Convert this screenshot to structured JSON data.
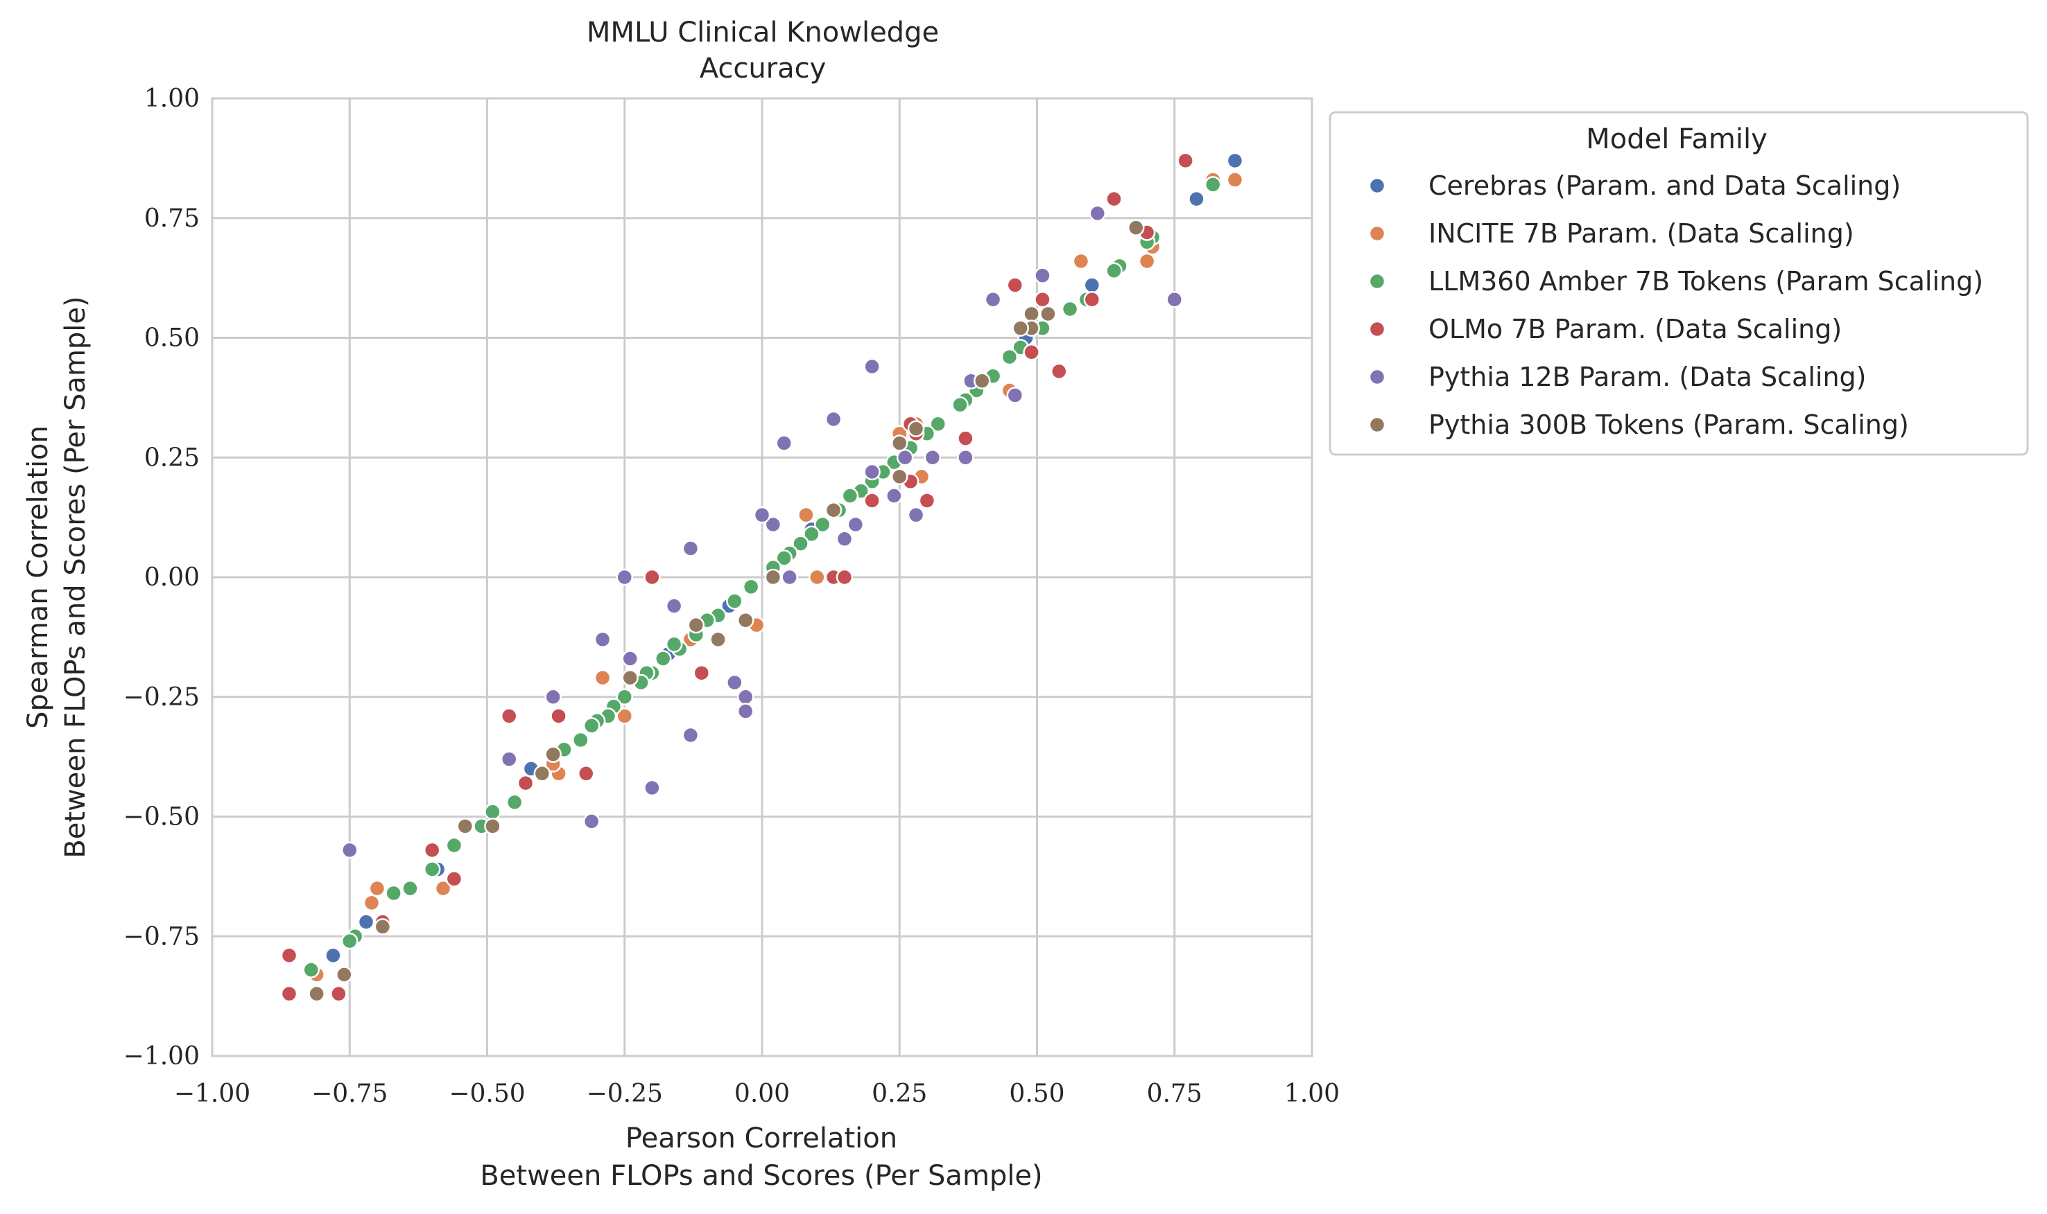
{
  "chart_data": {
    "type": "scatter",
    "title": [
      "MMLU Clinical Knowledge",
      "Accuracy"
    ],
    "xlabel": [
      "Pearson Correlation",
      "Between FLOPs and Scores (Per Sample)"
    ],
    "ylabel": [
      "Spearman Correlation",
      "Between FLOPs and Scores (Per Sample)"
    ],
    "xlim": [
      -1.0,
      1.0
    ],
    "ylim": [
      -1.0,
      1.0
    ],
    "xticks": [
      -1.0,
      -0.75,
      -0.5,
      -0.25,
      0.0,
      0.25,
      0.5,
      0.75,
      1.0
    ],
    "yticks": [
      -1.0,
      -0.75,
      -0.5,
      -0.25,
      0.0,
      0.25,
      0.5,
      0.75,
      1.0
    ],
    "xtick_labels": [
      "−1.00",
      "−0.75",
      "−0.50",
      "−0.25",
      "0.00",
      "0.25",
      "0.50",
      "0.75",
      "1.00"
    ],
    "ytick_labels": [
      "−1.00",
      "−0.75",
      "−0.50",
      "−0.25",
      "0.00",
      "0.25",
      "0.50",
      "0.75",
      "1.00"
    ],
    "grid": true,
    "legend": {
      "title": "Model Family",
      "placement": "outside-right-top"
    },
    "series": [
      {
        "name": "Cerebras (Param. and Data Scaling)",
        "color": "#4c72b0",
        "points": [
          [
            0.86,
            0.87
          ],
          [
            0.79,
            0.79
          ],
          [
            0.6,
            0.61
          ],
          [
            -0.78,
            -0.79
          ],
          [
            -0.72,
            -0.72
          ],
          [
            -0.59,
            -0.61
          ],
          [
            -0.42,
            -0.4
          ],
          [
            -0.17,
            -0.16
          ],
          [
            0.48,
            0.5
          ],
          [
            0.3,
            0.3
          ],
          [
            0.09,
            0.1
          ],
          [
            -0.06,
            -0.06
          ]
        ]
      },
      {
        "name": "INCITE 7B Param. (Data Scaling)",
        "color": "#dd8452",
        "points": [
          [
            0.82,
            0.83
          ],
          [
            0.86,
            0.83
          ],
          [
            0.71,
            0.69
          ],
          [
            0.7,
            0.66
          ],
          [
            0.58,
            0.66
          ],
          [
            0.45,
            0.39
          ],
          [
            0.25,
            0.3
          ],
          [
            0.29,
            0.21
          ],
          [
            0.08,
            0.13
          ],
          [
            0.1,
            0.0
          ],
          [
            -0.01,
            -0.1
          ],
          [
            -0.13,
            -0.13
          ],
          [
            -0.29,
            -0.21
          ],
          [
            -0.25,
            -0.29
          ],
          [
            -0.37,
            -0.41
          ],
          [
            -0.38,
            -0.39
          ],
          [
            -0.58,
            -0.65
          ],
          [
            -0.7,
            -0.65
          ],
          [
            -0.71,
            -0.68
          ],
          [
            -0.81,
            -0.83
          ],
          [
            0.28,
            0.32
          ]
        ]
      },
      {
        "name": "LLM360 Amber 7B Tokens (Param Scaling)",
        "color": "#55a868",
        "points": [
          [
            0.82,
            0.82
          ],
          [
            0.71,
            0.71
          ],
          [
            0.7,
            0.7
          ],
          [
            0.65,
            0.65
          ],
          [
            0.64,
            0.64
          ],
          [
            0.59,
            0.58
          ],
          [
            0.56,
            0.56
          ],
          [
            0.51,
            0.52
          ],
          [
            0.47,
            0.48
          ],
          [
            0.45,
            0.46
          ],
          [
            0.42,
            0.42
          ],
          [
            0.39,
            0.39
          ],
          [
            0.37,
            0.37
          ],
          [
            0.36,
            0.36
          ],
          [
            0.32,
            0.32
          ],
          [
            0.3,
            0.3
          ],
          [
            0.27,
            0.27
          ],
          [
            0.24,
            0.24
          ],
          [
            0.22,
            0.22
          ],
          [
            0.2,
            0.2
          ],
          [
            0.18,
            0.18
          ],
          [
            0.16,
            0.17
          ],
          [
            0.14,
            0.14
          ],
          [
            0.11,
            0.11
          ],
          [
            0.09,
            0.09
          ],
          [
            0.07,
            0.07
          ],
          [
            0.05,
            0.05
          ],
          [
            0.04,
            0.04
          ],
          [
            0.02,
            0.02
          ],
          [
            -0.02,
            -0.02
          ],
          [
            -0.05,
            -0.05
          ],
          [
            -0.08,
            -0.08
          ],
          [
            -0.1,
            -0.09
          ],
          [
            -0.12,
            -0.12
          ],
          [
            -0.15,
            -0.15
          ],
          [
            -0.16,
            -0.14
          ],
          [
            -0.18,
            -0.17
          ],
          [
            -0.2,
            -0.2
          ],
          [
            -0.21,
            -0.2
          ],
          [
            -0.22,
            -0.22
          ],
          [
            -0.25,
            -0.25
          ],
          [
            -0.27,
            -0.27
          ],
          [
            -0.28,
            -0.29
          ],
          [
            -0.3,
            -0.3
          ],
          [
            -0.31,
            -0.31
          ],
          [
            -0.33,
            -0.34
          ],
          [
            -0.36,
            -0.36
          ],
          [
            -0.38,
            -0.37
          ],
          [
            -0.45,
            -0.47
          ],
          [
            -0.49,
            -0.49
          ],
          [
            -0.51,
            -0.52
          ],
          [
            -0.56,
            -0.56
          ],
          [
            -0.6,
            -0.61
          ],
          [
            -0.64,
            -0.65
          ],
          [
            -0.67,
            -0.66
          ],
          [
            -0.74,
            -0.75
          ],
          [
            -0.75,
            -0.76
          ],
          [
            -0.82,
            -0.82
          ]
        ]
      },
      {
        "name": "OLMo 7B Param. (Data Scaling)",
        "color": "#c44e52",
        "points": [
          [
            0.77,
            0.87
          ],
          [
            0.64,
            0.79
          ],
          [
            0.7,
            0.72
          ],
          [
            0.46,
            0.61
          ],
          [
            0.51,
            0.58
          ],
          [
            0.6,
            0.58
          ],
          [
            0.54,
            0.43
          ],
          [
            0.49,
            0.47
          ],
          [
            0.37,
            0.29
          ],
          [
            0.27,
            0.32
          ],
          [
            0.28,
            0.3
          ],
          [
            0.27,
            0.2
          ],
          [
            0.2,
            0.16
          ],
          [
            0.3,
            0.16
          ],
          [
            0.13,
            0.0
          ],
          [
            0.15,
            0.0
          ],
          [
            -0.2,
            0.0
          ],
          [
            -0.11,
            -0.2
          ],
          [
            -0.46,
            -0.29
          ],
          [
            -0.37,
            -0.29
          ],
          [
            -0.32,
            -0.41
          ],
          [
            -0.43,
            -0.43
          ],
          [
            -0.6,
            -0.57
          ],
          [
            -0.56,
            -0.63
          ],
          [
            -0.69,
            -0.72
          ],
          [
            -0.86,
            -0.79
          ],
          [
            -0.86,
            -0.87
          ],
          [
            -0.77,
            -0.87
          ]
        ]
      },
      {
        "name": "Pythia 12B Param. (Data Scaling)",
        "color": "#8172b3",
        "points": [
          [
            0.61,
            0.76
          ],
          [
            0.75,
            0.58
          ],
          [
            0.51,
            0.63
          ],
          [
            0.42,
            0.58
          ],
          [
            0.46,
            0.38
          ],
          [
            0.38,
            0.41
          ],
          [
            0.37,
            0.25
          ],
          [
            0.31,
            0.25
          ],
          [
            0.28,
            0.13
          ],
          [
            0.26,
            0.25
          ],
          [
            0.24,
            0.17
          ],
          [
            0.2,
            0.44
          ],
          [
            0.2,
            0.22
          ],
          [
            0.17,
            0.11
          ],
          [
            0.15,
            0.08
          ],
          [
            0.13,
            0.33
          ],
          [
            0.04,
            0.28
          ],
          [
            0.02,
            0.11
          ],
          [
            0.0,
            0.13
          ],
          [
            0.05,
            0.0
          ],
          [
            -0.13,
            0.06
          ],
          [
            -0.16,
            -0.06
          ],
          [
            -0.25,
            0.0
          ],
          [
            -0.24,
            -0.17
          ],
          [
            -0.29,
            -0.13
          ],
          [
            -0.05,
            -0.22
          ],
          [
            -0.03,
            -0.25
          ],
          [
            -0.03,
            -0.28
          ],
          [
            -0.13,
            -0.33
          ],
          [
            -0.2,
            -0.44
          ],
          [
            -0.31,
            -0.51
          ],
          [
            -0.38,
            -0.25
          ],
          [
            -0.46,
            -0.38
          ],
          [
            -0.75,
            -0.57
          ]
        ]
      },
      {
        "name": "Pythia 300B Tokens (Param. Scaling)",
        "color": "#937860",
        "points": [
          [
            0.68,
            0.73
          ],
          [
            0.52,
            0.55
          ],
          [
            0.49,
            0.55
          ],
          [
            0.49,
            0.52
          ],
          [
            0.47,
            0.52
          ],
          [
            0.4,
            0.41
          ],
          [
            0.28,
            0.31
          ],
          [
            0.25,
            0.28
          ],
          [
            0.25,
            0.21
          ],
          [
            0.13,
            0.14
          ],
          [
            0.02,
            0.0
          ],
          [
            -0.03,
            -0.09
          ],
          [
            -0.08,
            -0.13
          ],
          [
            -0.12,
            -0.1
          ],
          [
            -0.24,
            -0.21
          ],
          [
            -0.38,
            -0.37
          ],
          [
            -0.4,
            -0.41
          ],
          [
            -0.49,
            -0.52
          ],
          [
            -0.54,
            -0.52
          ],
          [
            -0.69,
            -0.73
          ],
          [
            -0.76,
            -0.83
          ],
          [
            -0.81,
            -0.87
          ]
        ]
      }
    ]
  }
}
